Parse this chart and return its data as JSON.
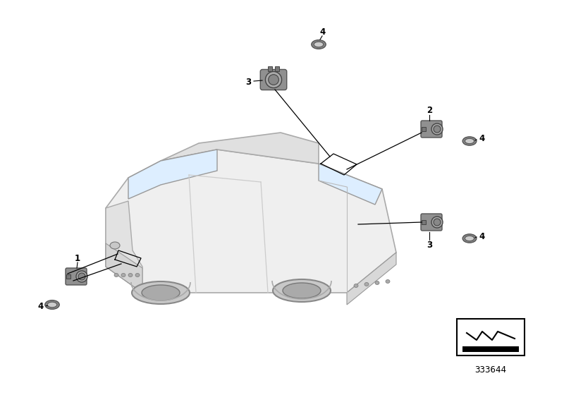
{
  "bg_color": "#ffffff",
  "diagram_number": "333644",
  "car_body_color": "#efefef",
  "car_roof_color": "#e0e0e0",
  "car_line_color": "#aaaaaa",
  "part_gray": "#909090",
  "part_dark": "#777777",
  "part_light": "#bbbbbb",
  "label_color": "#000000",
  "line_color": "#000000"
}
